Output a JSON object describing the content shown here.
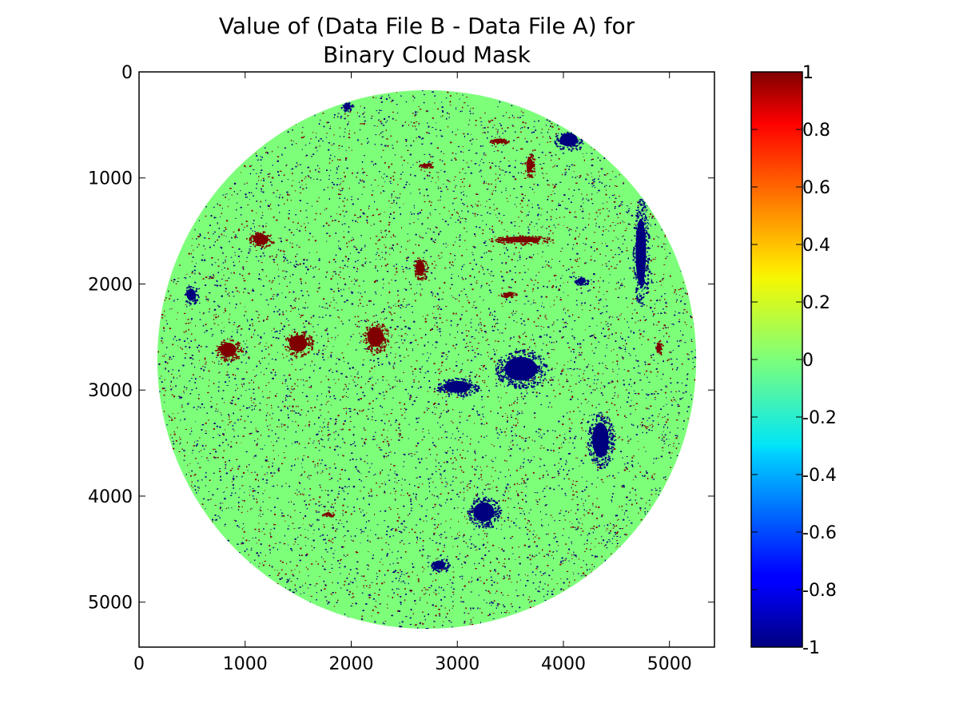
{
  "chart_data": {
    "type": "heatmap",
    "title_lines": [
      "Value of (Data File B - Data File A) for",
      "Binary Cloud Mask"
    ],
    "xlabel": "",
    "ylabel": "",
    "xlim": [
      0,
      5424
    ],
    "ylim": [
      5424,
      0
    ],
    "y_axis_inverted": true,
    "x_ticks": [
      0,
      1000,
      2000,
      3000,
      4000,
      5000
    ],
    "y_ticks": [
      0,
      1000,
      2000,
      3000,
      4000,
      5000
    ],
    "x_tick_labels": [
      "0",
      "1000",
      "2000",
      "3000",
      "4000",
      "5000"
    ],
    "y_tick_labels": [
      "0",
      "1000",
      "2000",
      "3000",
      "4000",
      "5000"
    ],
    "disk": {
      "center_x": 2712,
      "center_y": 2712,
      "radius": 2540
    },
    "background_value": 0,
    "colormap": "jet",
    "color_range": [
      -1,
      1
    ],
    "colorbar_ticks": [
      1,
      0.8,
      0.6,
      0.4,
      0.2,
      0,
      -0.2,
      -0.4,
      -0.6,
      -0.8,
      -1
    ],
    "colorbar_tick_labels": [
      "1",
      "0.8",
      "0.6",
      "0.4",
      "0.2",
      "0",
      "-0.2",
      "-0.4",
      "-0.6",
      "-0.8",
      "-1"
    ],
    "colors": {
      "positive_one": "#7f0000",
      "zero": "#7dff7a",
      "negative_one": "#00007f"
    },
    "regions_value_1": [
      {
        "x": 1150,
        "y": 1580,
        "rx": 100,
        "ry": 70
      },
      {
        "x": 840,
        "y": 2620,
        "rx": 110,
        "ry": 95
      },
      {
        "x": 1500,
        "y": 2560,
        "rx": 120,
        "ry": 110
      },
      {
        "x": 2230,
        "y": 2500,
        "rx": 110,
        "ry": 130
      },
      {
        "x": 2700,
        "y": 880,
        "rx": 60,
        "ry": 20
      },
      {
        "x": 3680,
        "y": 880,
        "rx": 40,
        "ry": 100
      },
      {
        "x": 3390,
        "y": 650,
        "rx": 80,
        "ry": 30
      },
      {
        "x": 3600,
        "y": 1580,
        "rx": 260,
        "ry": 40
      },
      {
        "x": 2650,
        "y": 1850,
        "rx": 60,
        "ry": 100
      },
      {
        "x": 4900,
        "y": 2600,
        "rx": 30,
        "ry": 60
      },
      {
        "x": 1780,
        "y": 4170,
        "rx": 50,
        "ry": 20
      },
      {
        "x": 3480,
        "y": 2100,
        "rx": 70,
        "ry": 25
      }
    ],
    "regions_value_neg1": [
      {
        "x": 4050,
        "y": 640,
        "rx": 120,
        "ry": 90
      },
      {
        "x": 4730,
        "y": 1700,
        "rx": 70,
        "ry": 450
      },
      {
        "x": 3250,
        "y": 4150,
        "rx": 140,
        "ry": 130
      },
      {
        "x": 4350,
        "y": 3470,
        "rx": 110,
        "ry": 230
      },
      {
        "x": 3000,
        "y": 2970,
        "rx": 180,
        "ry": 80
      },
      {
        "x": 3600,
        "y": 2800,
        "rx": 220,
        "ry": 160
      },
      {
        "x": 490,
        "y": 2100,
        "rx": 60,
        "ry": 80
      },
      {
        "x": 1960,
        "y": 330,
        "rx": 50,
        "ry": 40
      },
      {
        "x": 4170,
        "y": 1970,
        "rx": 60,
        "ry": 40
      },
      {
        "x": 2830,
        "y": 4650,
        "rx": 80,
        "ry": 60
      }
    ],
    "scatter_value_1_fraction": 0.035,
    "scatter_value_neg1_fraction": 0.03
  }
}
